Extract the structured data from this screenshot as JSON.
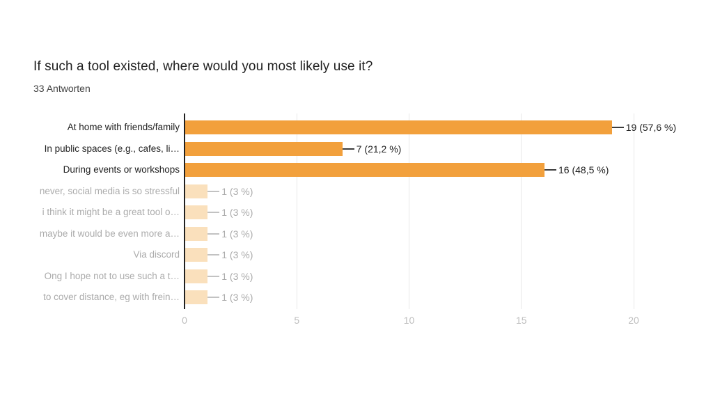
{
  "chart_data": {
    "type": "bar",
    "orientation": "horizontal",
    "title": "If such a tool existed, where would you most likely use it?",
    "subtitle": "33 Antworten",
    "categories": [
      "At home with friends/family",
      "In public spaces (e.g., cafes, li…",
      "During events or workshops",
      "never, social media is so stressful",
      "i think it might be a great tool o…",
      "maybe it would be even more a…",
      "Via discord",
      "Ong I hope not to use such a t…",
      "to cover distance, eg with frein…"
    ],
    "values": [
      19,
      7,
      16,
      1,
      1,
      1,
      1,
      1,
      1
    ],
    "value_labels": [
      "19 (57,6 %)",
      "7 (21,2 %)",
      "16 (48,5 %)",
      "1 (3 %)",
      "1 (3 %)",
      "1 (3 %)",
      "1 (3 %)",
      "1 (3 %)",
      "1 (3 %)"
    ],
    "faded": [
      false,
      false,
      false,
      true,
      true,
      true,
      true,
      true,
      true
    ],
    "xlim": [
      0,
      20
    ],
    "xticks": [
      0,
      5,
      10,
      15,
      20
    ],
    "grid": "vertical-only",
    "legend": "none",
    "colors": {
      "bar": "#f2a03c",
      "bar_faded": "#fae0bc",
      "text_dark": "#212121",
      "text_faded": "#ababab",
      "subtitle": "#424242",
      "tick_label": "#bdbdbd",
      "gridline": "#e8e8e8",
      "axis_line": "#212121",
      "connector_dark": "#3c3c3c",
      "connector_faded": "#c2c2c2"
    }
  }
}
